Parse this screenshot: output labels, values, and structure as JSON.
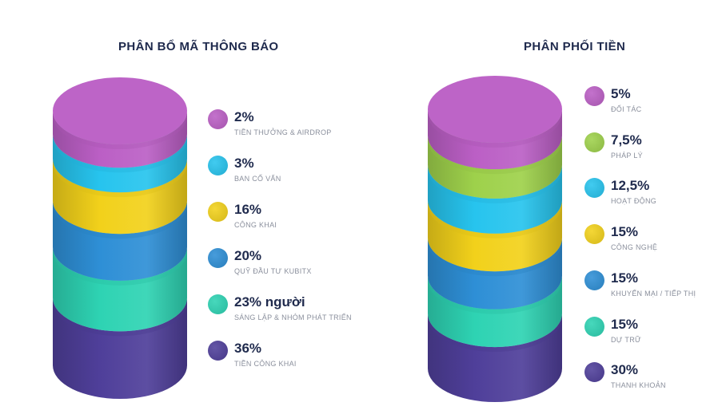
{
  "chart_data": [
    {
      "type": "stacked-cylinder",
      "title": "PHÂN BỔ MÃ THÔNG BÁO",
      "slices": [
        {
          "value_label": "2%",
          "value": 2,
          "label": "TIỀN THƯỞNG & AIRDROP",
          "color": "#bb5fc5"
        },
        {
          "value_label": "3%",
          "value": 3,
          "label": "BAN CỐ VẤN",
          "color": "#27c4ee"
        },
        {
          "value_label": "16%",
          "value": 16,
          "label": "CÔNG KHAI",
          "color": "#f2d11b"
        },
        {
          "value_label": "20%",
          "value": 20,
          "label": "QUỸ ĐẦU TƯ KUBITX",
          "color": "#2e8fd6"
        },
        {
          "value_label": "23% người",
          "value": 23,
          "label": "SÁNG LẬP & NHÓM PHÁT TRIỂN",
          "color": "#2ed3b3"
        },
        {
          "value_label": "36%",
          "value": 36,
          "label": "TIỀN CÔNG KHAI",
          "color": "#4f3f9a"
        }
      ]
    },
    {
      "type": "stacked-cylinder",
      "title": "PHÂN PHỐI TIỀN",
      "slices": [
        {
          "value_label": "5%",
          "value": 5,
          "label": "ĐỐI TÁC",
          "color": "#bb5fc5"
        },
        {
          "value_label": "7,5%",
          "value": 7.5,
          "label": "PHÁP LÝ",
          "color": "#9ed14b"
        },
        {
          "value_label": "12,5%",
          "value": 12.5,
          "label": "HOẠT ĐỘNG",
          "color": "#27c4ee"
        },
        {
          "value_label": "15%",
          "value": 15,
          "label": "CÔNG NGHỆ",
          "color": "#f2d11b"
        },
        {
          "value_label": "15%",
          "value": 15,
          "label": "KHUYẾN MẠI / TIẾP THỊ",
          "color": "#2e8fd6"
        },
        {
          "value_label": "15%",
          "value": 15,
          "label": "DỰ TRỮ",
          "color": "#2ed3b3"
        },
        {
          "value_label": "30%",
          "value": 30,
          "label": "THANH KHOẢN",
          "color": "#4f3f9a"
        }
      ]
    }
  ]
}
